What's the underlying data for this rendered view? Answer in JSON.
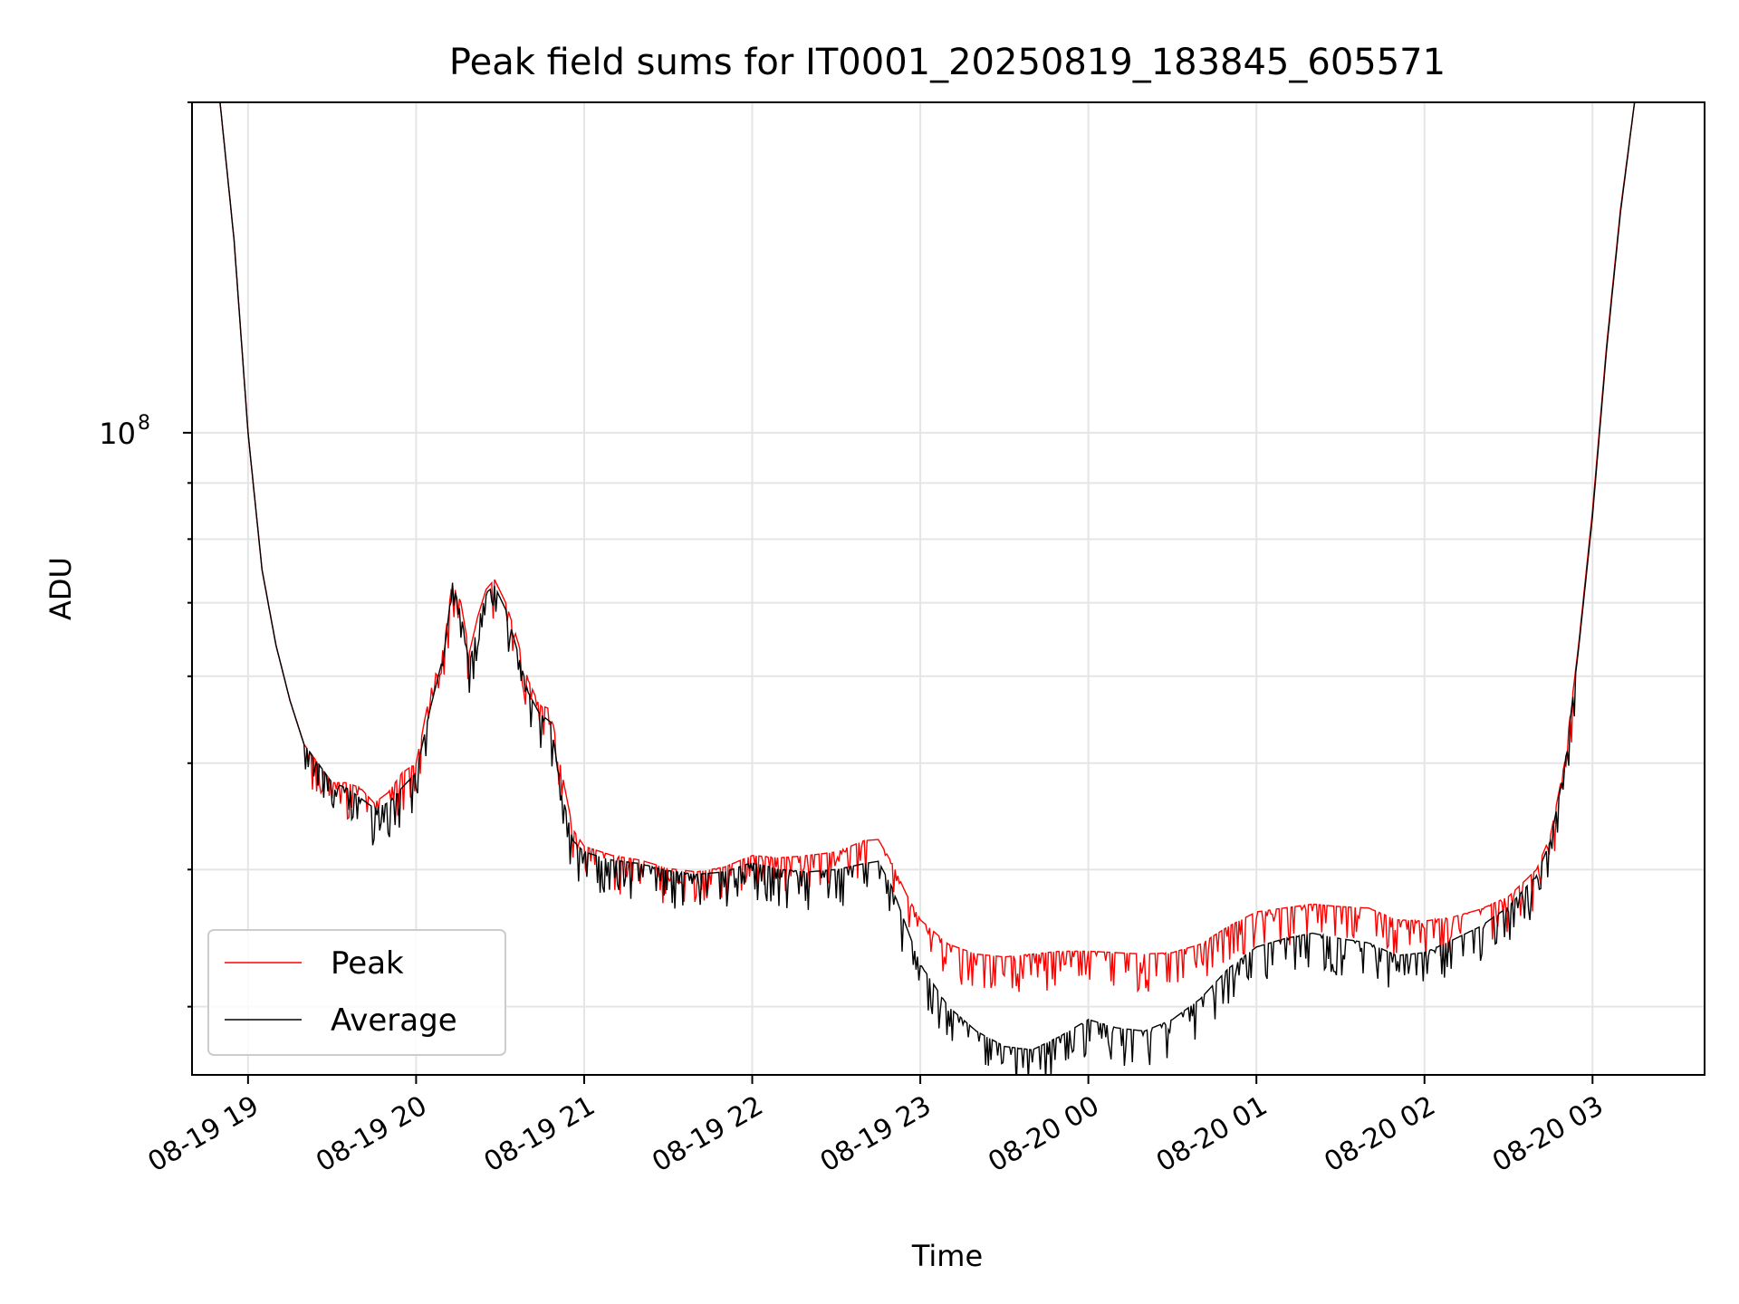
{
  "chart_data": {
    "type": "line",
    "title": "Peak field sums for IT0001_20250819_183845_605571",
    "xlabel": "Time",
    "ylabel": "ADU",
    "yscale": "log",
    "grid": true,
    "legend_position": "lower-left",
    "x_tick_labels": [
      "08-19 19",
      "08-19 20",
      "08-19 21",
      "08-19 22",
      "08-19 23",
      "08-20 00",
      "08-20 01",
      "08-20 02",
      "08-20 03"
    ],
    "y_tick_label": {
      "base": "10",
      "exponent": "8",
      "value": 100000000
    },
    "xlim": [
      "2025-08-19 18:40",
      "2025-08-20 03:40"
    ],
    "ylim": [
      26000000,
      200000000
    ],
    "series": [
      {
        "name": "Peak",
        "color": "#ff0000",
        "points": [
          [
            "2025-08-19 18:50",
            200000000
          ],
          [
            "2025-08-19 18:55",
            150000000
          ],
          [
            "2025-08-19 19:00",
            100000000
          ],
          [
            "2025-08-19 19:05",
            75000000
          ],
          [
            "2025-08-19 19:10",
            64000000
          ],
          [
            "2025-08-19 19:15",
            57000000
          ],
          [
            "2025-08-19 19:20",
            52000000
          ],
          [
            "2025-08-19 19:25",
            50000000
          ],
          [
            "2025-08-19 19:30",
            48000000
          ],
          [
            "2025-08-19 19:35",
            48000000
          ],
          [
            "2025-08-19 19:40",
            47500000
          ],
          [
            "2025-08-19 19:45",
            46000000
          ],
          [
            "2025-08-19 19:50",
            47000000
          ],
          [
            "2025-08-19 19:55",
            49000000
          ],
          [
            "2025-08-19 20:00",
            50000000
          ],
          [
            "2025-08-19 20:05",
            58000000
          ],
          [
            "2025-08-19 20:10",
            64000000
          ],
          [
            "2025-08-19 20:13",
            73500000
          ],
          [
            "2025-08-19 20:16",
            70000000
          ],
          [
            "2025-08-19 20:19",
            63000000
          ],
          [
            "2025-08-19 20:22",
            68000000
          ],
          [
            "2025-08-19 20:25",
            72000000
          ],
          [
            "2025-08-19 20:28",
            73500000
          ],
          [
            "2025-08-19 20:32",
            70000000
          ],
          [
            "2025-08-19 20:36",
            65000000
          ],
          [
            "2025-08-19 20:40",
            59500000
          ],
          [
            "2025-08-19 20:44",
            56500000
          ],
          [
            "2025-08-19 20:48",
            56000000
          ],
          [
            "2025-08-19 20:52",
            49000000
          ],
          [
            "2025-08-19 20:56",
            43500000
          ],
          [
            "2025-08-19 21:00",
            42000000
          ],
          [
            "2025-08-19 21:10",
            41200000
          ],
          [
            "2025-08-19 21:20",
            40800000
          ],
          [
            "2025-08-19 21:30",
            40100000
          ],
          [
            "2025-08-19 21:40",
            39800000
          ],
          [
            "2025-08-19 21:50",
            40200000
          ],
          [
            "2025-08-19 22:00",
            41200000
          ],
          [
            "2025-08-19 22:10",
            41000000
          ],
          [
            "2025-08-19 22:20",
            41200000
          ],
          [
            "2025-08-19 22:30",
            41500000
          ],
          [
            "2025-08-19 22:40",
            42500000
          ],
          [
            "2025-08-19 22:45",
            42600000
          ],
          [
            "2025-08-19 22:50",
            40500000
          ],
          [
            "2025-08-19 22:55",
            38000000
          ],
          [
            "2025-08-19 23:00",
            36000000
          ],
          [
            "2025-08-19 23:10",
            34200000
          ],
          [
            "2025-08-19 23:20",
            33500000
          ],
          [
            "2025-08-19 23:30",
            33300000
          ],
          [
            "2025-08-19 23:40",
            33500000
          ],
          [
            "2025-08-19 23:50",
            33700000
          ],
          [
            "2025-08-20 00:00",
            33700000
          ],
          [
            "2025-08-20 00:10",
            33600000
          ],
          [
            "2025-08-20 00:20",
            33500000
          ],
          [
            "2025-08-20 00:30",
            33600000
          ],
          [
            "2025-08-20 00:40",
            34200000
          ],
          [
            "2025-08-20 00:50",
            35500000
          ],
          [
            "2025-08-20 01:00",
            36600000
          ],
          [
            "2025-08-20 01:10",
            36900000
          ],
          [
            "2025-08-20 01:20",
            37200000
          ],
          [
            "2025-08-20 01:30",
            37000000
          ],
          [
            "2025-08-20 01:40",
            36900000
          ],
          [
            "2025-08-20 01:50",
            36000000
          ],
          [
            "2025-08-20 02:00",
            35900000
          ],
          [
            "2025-08-20 02:10",
            36200000
          ],
          [
            "2025-08-20 02:20",
            36800000
          ],
          [
            "2025-08-20 02:30",
            37800000
          ],
          [
            "2025-08-20 02:40",
            40000000
          ],
          [
            "2025-08-20 02:45",
            43000000
          ],
          [
            "2025-08-20 02:50",
            50000000
          ],
          [
            "2025-08-20 02:55",
            64000000
          ],
          [
            "2025-08-20 03:00",
            85000000
          ],
          [
            "2025-08-20 03:05",
            120000000
          ],
          [
            "2025-08-20 03:10",
            160000000
          ],
          [
            "2025-08-20 03:15",
            200000000
          ]
        ]
      },
      {
        "name": "Average",
        "color": "#000000",
        "points": [
          [
            "2025-08-19 18:50",
            200000000
          ],
          [
            "2025-08-19 18:55",
            150000000
          ],
          [
            "2025-08-19 19:00",
            100000000
          ],
          [
            "2025-08-19 19:05",
            75000000
          ],
          [
            "2025-08-19 19:10",
            64000000
          ],
          [
            "2025-08-19 19:15",
            57000000
          ],
          [
            "2025-08-19 19:20",
            52000000
          ],
          [
            "2025-08-19 19:25",
            50000000
          ],
          [
            "2025-08-19 19:30",
            48000000
          ],
          [
            "2025-08-19 19:35",
            47500000
          ],
          [
            "2025-08-19 19:40",
            46500000
          ],
          [
            "2025-08-19 19:45",
            45500000
          ],
          [
            "2025-08-19 19:50",
            46000000
          ],
          [
            "2025-08-19 19:55",
            47500000
          ],
          [
            "2025-08-19 20:00",
            49000000
          ],
          [
            "2025-08-19 20:05",
            56000000
          ],
          [
            "2025-08-19 20:10",
            63000000
          ],
          [
            "2025-08-19 20:13",
            73000000
          ],
          [
            "2025-08-19 20:16",
            68500000
          ],
          [
            "2025-08-19 20:19",
            61500000
          ],
          [
            "2025-08-19 20:22",
            67000000
          ],
          [
            "2025-08-19 20:25",
            71500000
          ],
          [
            "2025-08-19 20:28",
            72500000
          ],
          [
            "2025-08-19 20:32",
            69000000
          ],
          [
            "2025-08-19 20:36",
            63500000
          ],
          [
            "2025-08-19 20:40",
            58000000
          ],
          [
            "2025-08-19 20:44",
            55500000
          ],
          [
            "2025-08-19 20:48",
            54500000
          ],
          [
            "2025-08-19 20:52",
            47000000
          ],
          [
            "2025-08-19 20:56",
            42500000
          ],
          [
            "2025-08-19 21:00",
            41500000
          ],
          [
            "2025-08-19 21:10",
            40800000
          ],
          [
            "2025-08-19 21:20",
            40500000
          ],
          [
            "2025-08-19 21:30",
            39900000
          ],
          [
            "2025-08-19 21:40",
            39600000
          ],
          [
            "2025-08-19 21:50",
            39800000
          ],
          [
            "2025-08-19 22:00",
            40600000
          ],
          [
            "2025-08-19 22:10",
            40000000
          ],
          [
            "2025-08-19 22:20",
            39800000
          ],
          [
            "2025-08-19 22:30",
            40000000
          ],
          [
            "2025-08-19 22:40",
            40500000
          ],
          [
            "2025-08-19 22:45",
            40700000
          ],
          [
            "2025-08-19 22:50",
            38500000
          ],
          [
            "2025-08-19 22:55",
            35500000
          ],
          [
            "2025-08-19 23:00",
            32800000
          ],
          [
            "2025-08-19 23:10",
            30000000
          ],
          [
            "2025-08-19 23:20",
            28500000
          ],
          [
            "2025-08-19 23:30",
            27600000
          ],
          [
            "2025-08-19 23:40",
            27400000
          ],
          [
            "2025-08-19 23:50",
            28200000
          ],
          [
            "2025-08-20 00:00",
            29200000
          ],
          [
            "2025-08-20 00:10",
            28700000
          ],
          [
            "2025-08-20 00:20",
            28500000
          ],
          [
            "2025-08-20 00:30",
            29200000
          ],
          [
            "2025-08-20 00:40",
            30500000
          ],
          [
            "2025-08-20 00:50",
            32500000
          ],
          [
            "2025-08-20 01:00",
            34000000
          ],
          [
            "2025-08-20 01:10",
            34600000
          ],
          [
            "2025-08-20 01:20",
            35000000
          ],
          [
            "2025-08-20 01:30",
            34600000
          ],
          [
            "2025-08-20 01:40",
            34300000
          ],
          [
            "2025-08-20 01:50",
            33400000
          ],
          [
            "2025-08-20 02:00",
            33600000
          ],
          [
            "2025-08-20 02:10",
            34500000
          ],
          [
            "2025-08-20 02:20",
            35500000
          ],
          [
            "2025-08-20 02:30",
            37000000
          ],
          [
            "2025-08-20 02:40",
            39500000
          ],
          [
            "2025-08-20 02:45",
            42500000
          ],
          [
            "2025-08-20 02:50",
            49500000
          ],
          [
            "2025-08-20 02:55",
            63500000
          ],
          [
            "2025-08-20 03:00",
            84000000
          ],
          [
            "2025-08-20 03:05",
            119000000
          ],
          [
            "2025-08-20 03:10",
            159000000
          ],
          [
            "2025-08-20 03:15",
            200000000
          ]
        ]
      }
    ]
  }
}
